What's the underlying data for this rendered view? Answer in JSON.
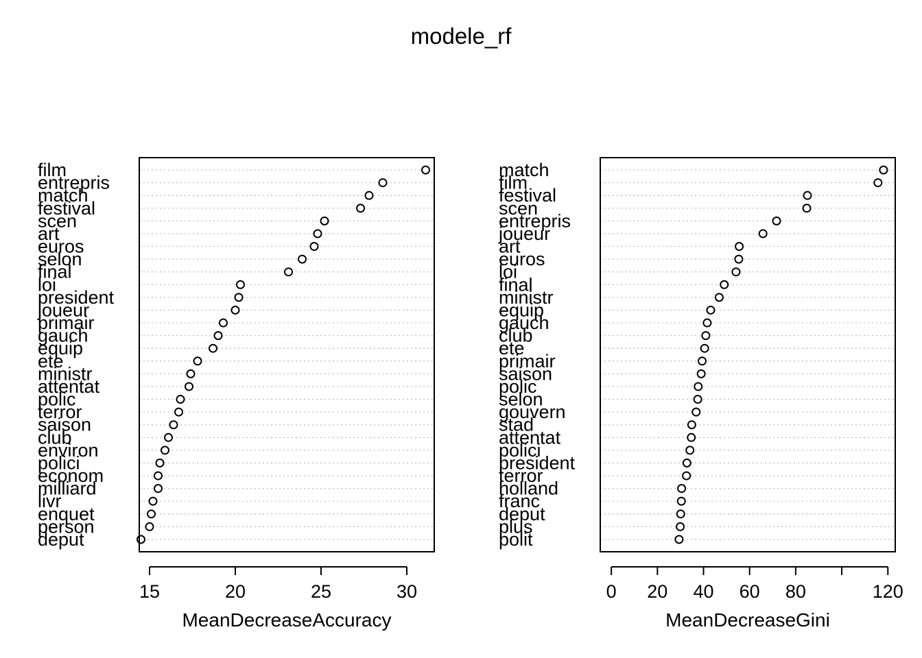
{
  "title": "modele_rf",
  "chart_data": [
    {
      "type": "dotchart",
      "xlabel": "MeanDecreaseAccuracy",
      "xlim": [
        14.4,
        31.6
      ],
      "xticks": [
        15,
        20,
        25,
        30
      ],
      "categories": [
        "film",
        "entrepris",
        "match",
        "festival",
        "scen",
        "art",
        "euros",
        "selon",
        "final",
        "loi",
        "president",
        "joueur",
        "primair",
        "gauch",
        "equip",
        "ete",
        "ministr",
        "attentat",
        "polic",
        "terror",
        "saison",
        "club",
        "environ",
        "polici",
        "econom",
        "milliard",
        "livr",
        "enquet",
        "person",
        "deput"
      ],
      "values": [
        31.1,
        28.6,
        27.8,
        27.3,
        25.2,
        24.8,
        24.6,
        23.9,
        23.1,
        20.3,
        20.2,
        20.0,
        19.3,
        19.0,
        18.7,
        17.8,
        17.4,
        17.3,
        16.8,
        16.7,
        16.4,
        16.1,
        15.9,
        15.6,
        15.5,
        15.5,
        15.2,
        15.1,
        15.0,
        14.5
      ]
    },
    {
      "type": "dotchart",
      "xlabel": "MeanDecreaseGini",
      "xlim": [
        -4.8,
        123.2
      ],
      "xticks": [
        0,
        20,
        40,
        60,
        80,
        100,
        120
      ],
      "xtick_labels": [
        "0",
        "20",
        "40",
        "60",
        "80",
        "",
        "120"
      ],
      "categories": [
        "match",
        "film",
        "festival",
        "scen",
        "entrepris",
        "joueur",
        "art",
        "euros",
        "loi",
        "final",
        "ministr",
        "equip",
        "gauch",
        "club",
        "ete",
        "primair",
        "saison",
        "polic",
        "selon",
        "gouvern",
        "stad",
        "attentat",
        "polici",
        "president",
        "terror",
        "holland",
        "franc",
        "deput",
        "plus",
        "polit"
      ],
      "values": [
        118.1,
        115.7,
        85.1,
        84.8,
        71.7,
        65.8,
        55.5,
        55.3,
        54.1,
        49.0,
        46.8,
        43.1,
        41.6,
        41.0,
        40.5,
        39.4,
        39.0,
        37.7,
        37.5,
        36.8,
        34.9,
        34.7,
        34.1,
        32.8,
        32.6,
        30.5,
        30.4,
        30.1,
        29.9,
        29.4
      ]
    }
  ]
}
